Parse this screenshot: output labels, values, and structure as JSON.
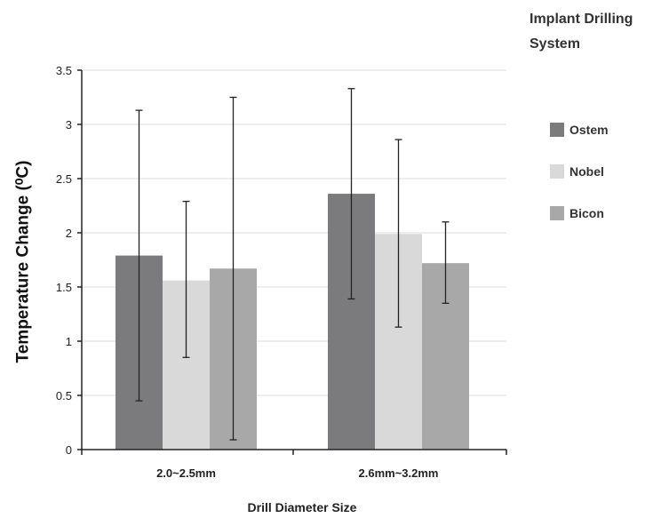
{
  "chart_data": {
    "type": "bar",
    "title": "",
    "xlabel": "Drill Diameter Size",
    "ylabel": "Temperature Change (⁰C)",
    "ylim": [
      0,
      3.5
    ],
    "yticks": [
      "0",
      "0.5",
      "1",
      "1.5",
      "2",
      "2.5",
      "3",
      "3.5"
    ],
    "categories": [
      "2.0~2.5mm",
      "2.6mm~3.2mm"
    ],
    "legend_title": "Implant Drilling System",
    "legend_title_lines": [
      "Implant Drilling",
      "System"
    ],
    "legend_position": "right",
    "grid": true,
    "error_bars": true,
    "series": [
      {
        "name": "Ostem",
        "color": "#7b7b7d",
        "values": [
          1.79,
          2.36
        ],
        "err_low": [
          0.45,
          1.39
        ],
        "err_high": [
          3.13,
          3.33
        ]
      },
      {
        "name": "Nobel",
        "color": "#d9d9da",
        "values": [
          1.56,
          1.99
        ],
        "err_low": [
          0.85,
          1.13
        ],
        "err_high": [
          2.29,
          2.86
        ]
      },
      {
        "name": "Bicon",
        "color": "#a8a8a9",
        "values": [
          1.67,
          1.72
        ],
        "err_low": [
          0.09,
          1.35
        ],
        "err_high": [
          3.25,
          2.1
        ]
      }
    ]
  }
}
